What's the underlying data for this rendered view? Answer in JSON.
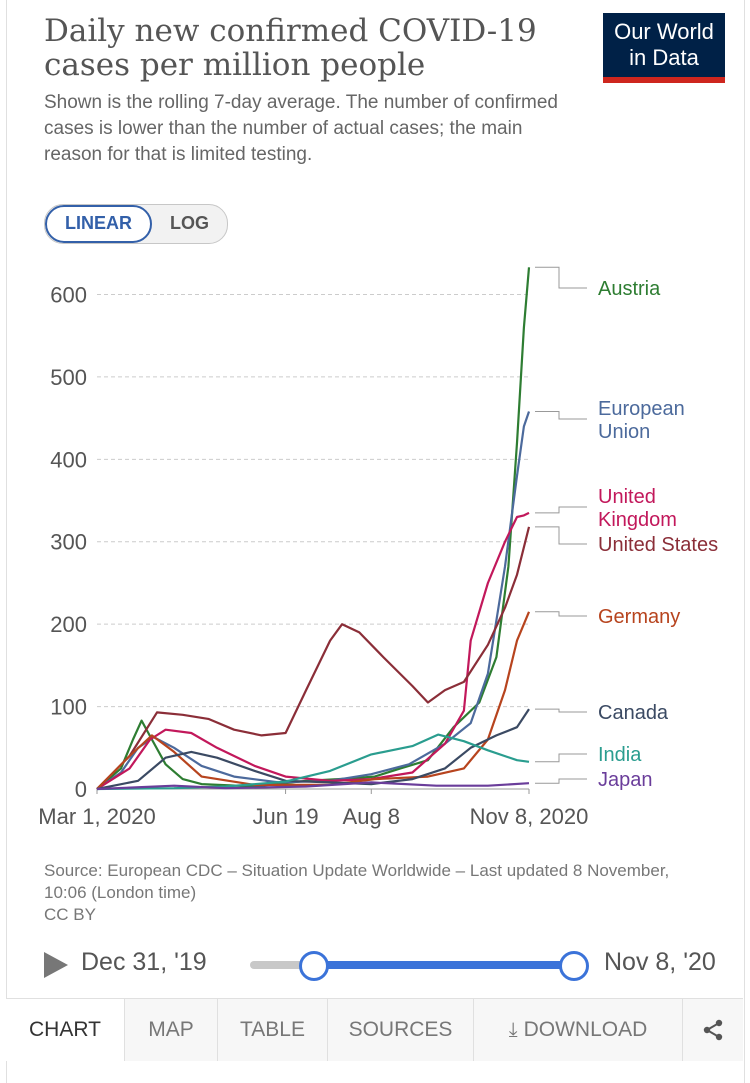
{
  "header": {
    "title": "Daily new confirmed COVID-19 cases per million people",
    "subtitle": "Shown is the rolling 7-day average. The number of confirmed cases is lower than the number of actual cases; the main reason for that is limited testing.",
    "logo_line1": "Our World",
    "logo_line2": "in Data"
  },
  "controls": {
    "linear_label": "LINEAR",
    "log_label": "LOG",
    "active_scale": "linear"
  },
  "chart_data": {
    "type": "line",
    "title": "Daily new confirmed COVID-19 cases per million people",
    "subtitle": "Shown is the rolling 7-day average. The number of confirmed cases is lower than the number of actual cases; the main reason for that is limited testing.",
    "xlabel": "",
    "ylabel": "",
    "x_start": "Mar 1, 2020",
    "x_end": "Nov 8, 2020",
    "x_ticks": [
      {
        "label": "Mar 1, 2020",
        "date": "2020-03-01"
      },
      {
        "label": "Jun 19",
        "date": "2020-06-19"
      },
      {
        "label": "Aug 8",
        "date": "2020-08-08"
      },
      {
        "label": "Nov 8, 2020",
        "date": "2020-11-08"
      }
    ],
    "y_ticks": [
      0,
      100,
      200,
      300,
      400,
      500,
      600
    ],
    "ylim": [
      0,
      620
    ],
    "grid": "horizontal dashed",
    "legend": "right, labels at line ends",
    "series": [
      {
        "name": "Austria",
        "color": "#2e7d32",
        "points": [
          [
            "2020-03-01",
            0
          ],
          [
            "2020-03-15",
            25
          ],
          [
            "2020-03-22",
            60
          ],
          [
            "2020-03-27",
            83
          ],
          [
            "2020-04-02",
            60
          ],
          [
            "2020-04-10",
            30
          ],
          [
            "2020-04-20",
            12
          ],
          [
            "2020-05-01",
            6
          ],
          [
            "2020-06-01",
            3
          ],
          [
            "2020-07-01",
            10
          ],
          [
            "2020-07-20",
            12
          ],
          [
            "2020-08-10",
            15
          ],
          [
            "2020-08-25",
            25
          ],
          [
            "2020-09-10",
            35
          ],
          [
            "2020-09-25",
            75
          ],
          [
            "2020-10-10",
            105
          ],
          [
            "2020-10-20",
            160
          ],
          [
            "2020-10-27",
            270
          ],
          [
            "2020-11-01",
            420
          ],
          [
            "2020-11-05",
            560
          ],
          [
            "2020-11-08",
            633
          ]
        ]
      },
      {
        "name": "European Union",
        "color": "#4c6a9c",
        "points": [
          [
            "2020-03-01",
            0
          ],
          [
            "2020-03-15",
            20
          ],
          [
            "2020-03-25",
            50
          ],
          [
            "2020-04-03",
            63
          ],
          [
            "2020-04-15",
            50
          ],
          [
            "2020-05-01",
            28
          ],
          [
            "2020-05-20",
            15
          ],
          [
            "2020-06-15",
            8
          ],
          [
            "2020-07-15",
            10
          ],
          [
            "2020-08-08",
            18
          ],
          [
            "2020-08-30",
            30
          ],
          [
            "2020-09-20",
            55
          ],
          [
            "2020-10-05",
            80
          ],
          [
            "2020-10-15",
            140
          ],
          [
            "2020-10-25",
            270
          ],
          [
            "2020-11-01",
            380
          ],
          [
            "2020-11-05",
            440
          ],
          [
            "2020-11-08",
            458
          ]
        ]
      },
      {
        "name": "United Kingdom",
        "color": "#c2185b",
        "points": [
          [
            "2020-03-01",
            0
          ],
          [
            "2020-03-20",
            25
          ],
          [
            "2020-04-01",
            60
          ],
          [
            "2020-04-10",
            72
          ],
          [
            "2020-04-25",
            68
          ],
          [
            "2020-05-10",
            50
          ],
          [
            "2020-06-01",
            28
          ],
          [
            "2020-06-19",
            15
          ],
          [
            "2020-07-15",
            10
          ],
          [
            "2020-08-08",
            12
          ],
          [
            "2020-09-01",
            20
          ],
          [
            "2020-09-20",
            55
          ],
          [
            "2020-10-01",
            95
          ],
          [
            "2020-10-05",
            180
          ],
          [
            "2020-10-15",
            250
          ],
          [
            "2020-10-25",
            300
          ],
          [
            "2020-11-01",
            330
          ],
          [
            "2020-11-05",
            332
          ],
          [
            "2020-11-08",
            335
          ]
        ]
      },
      {
        "name": "United States",
        "color": "#8b2e38",
        "points": [
          [
            "2020-03-01",
            0
          ],
          [
            "2020-03-20",
            40
          ],
          [
            "2020-04-05",
            93
          ],
          [
            "2020-04-20",
            90
          ],
          [
            "2020-05-05",
            85
          ],
          [
            "2020-05-20",
            72
          ],
          [
            "2020-06-05",
            65
          ],
          [
            "2020-06-19",
            68
          ],
          [
            "2020-07-01",
            120
          ],
          [
            "2020-07-15",
            180
          ],
          [
            "2020-07-22",
            200
          ],
          [
            "2020-08-01",
            190
          ],
          [
            "2020-08-15",
            160
          ],
          [
            "2020-09-01",
            125
          ],
          [
            "2020-09-10",
            105
          ],
          [
            "2020-09-20",
            120
          ],
          [
            "2020-10-01",
            130
          ],
          [
            "2020-10-15",
            175
          ],
          [
            "2020-10-25",
            220
          ],
          [
            "2020-11-01",
            260
          ],
          [
            "2020-11-08",
            318
          ]
        ]
      },
      {
        "name": "Germany",
        "color": "#b7441e",
        "points": [
          [
            "2020-03-01",
            0
          ],
          [
            "2020-03-20",
            40
          ],
          [
            "2020-04-02",
            65
          ],
          [
            "2020-04-15",
            45
          ],
          [
            "2020-05-01",
            15
          ],
          [
            "2020-06-01",
            5
          ],
          [
            "2020-07-15",
            5
          ],
          [
            "2020-08-10",
            12
          ],
          [
            "2020-09-10",
            15
          ],
          [
            "2020-10-01",
            25
          ],
          [
            "2020-10-15",
            60
          ],
          [
            "2020-10-25",
            120
          ],
          [
            "2020-11-01",
            180
          ],
          [
            "2020-11-08",
            215
          ]
        ]
      },
      {
        "name": "Canada",
        "color": "#3b4a63",
        "points": [
          [
            "2020-03-01",
            0
          ],
          [
            "2020-03-25",
            10
          ],
          [
            "2020-04-10",
            38
          ],
          [
            "2020-04-25",
            45
          ],
          [
            "2020-05-10",
            38
          ],
          [
            "2020-06-01",
            22
          ],
          [
            "2020-06-19",
            10
          ],
          [
            "2020-07-15",
            8
          ],
          [
            "2020-08-08",
            6
          ],
          [
            "2020-09-01",
            12
          ],
          [
            "2020-09-20",
            25
          ],
          [
            "2020-10-05",
            50
          ],
          [
            "2020-10-20",
            65
          ],
          [
            "2020-11-01",
            75
          ],
          [
            "2020-11-08",
            97
          ]
        ]
      },
      {
        "name": "India",
        "color": "#2a9d8f",
        "points": [
          [
            "2020-03-01",
            0
          ],
          [
            "2020-04-15",
            1
          ],
          [
            "2020-05-15",
            3
          ],
          [
            "2020-06-19",
            9
          ],
          [
            "2020-07-15",
            22
          ],
          [
            "2020-08-08",
            42
          ],
          [
            "2020-09-01",
            52
          ],
          [
            "2020-09-16",
            66
          ],
          [
            "2020-10-01",
            58
          ],
          [
            "2020-10-15",
            47
          ],
          [
            "2020-11-01",
            35
          ],
          [
            "2020-11-08",
            33
          ]
        ]
      },
      {
        "name": "Japan",
        "color": "#6a3d9a",
        "points": [
          [
            "2020-03-01",
            0
          ],
          [
            "2020-04-15",
            4
          ],
          [
            "2020-05-15",
            1
          ],
          [
            "2020-07-01",
            3
          ],
          [
            "2020-08-08",
            8
          ],
          [
            "2020-09-15",
            4
          ],
          [
            "2020-10-15",
            4
          ],
          [
            "2020-11-08",
            7
          ]
        ]
      }
    ],
    "line_labels": [
      {
        "series": "Austria",
        "lines": [
          "Austria"
        ]
      },
      {
        "series": "European Union",
        "lines": [
          "European",
          "Union"
        ]
      },
      {
        "series": "United Kingdom",
        "lines": [
          "United",
          "Kingdom"
        ]
      },
      {
        "series": "United States",
        "lines": [
          "United States"
        ]
      },
      {
        "series": "Germany",
        "lines": [
          "Germany"
        ]
      },
      {
        "series": "Canada",
        "lines": [
          "Canada"
        ]
      },
      {
        "series": "India",
        "lines": [
          "India"
        ]
      },
      {
        "series": "Japan",
        "lines": [
          "Japan"
        ]
      }
    ]
  },
  "footer": {
    "source": "Source: European CDC – Situation Update Worldwide – Last updated 8 November, 10:06 (London time)",
    "license": "CC BY"
  },
  "timeline": {
    "start_label": "Dec 31, '19",
    "end_label": "Nov 8, '20"
  },
  "tabs": [
    {
      "label": "CHART",
      "active": true
    },
    {
      "label": "MAP"
    },
    {
      "label": "TABLE"
    },
    {
      "label": "SOURCES"
    },
    {
      "label": "DOWNLOAD",
      "icon": "download-icon"
    },
    {
      "label": "",
      "icon": "share-icon"
    }
  ]
}
